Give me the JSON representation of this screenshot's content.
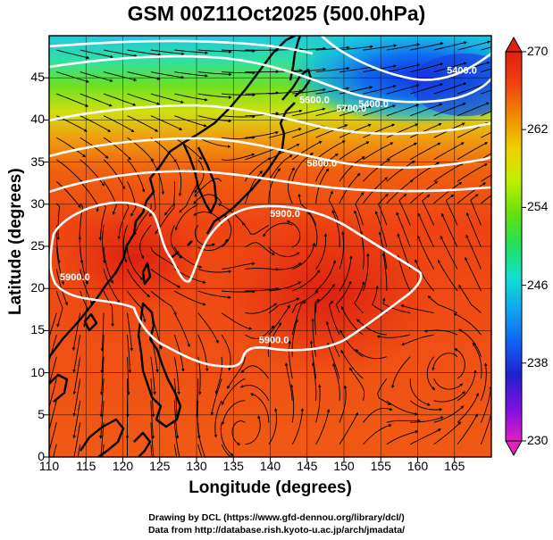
{
  "title": "GSM 00Z11Oct2025 (500.0hPa)",
  "x_axis": {
    "label": "Longitude (degrees)",
    "ticks": [
      "110",
      "115",
      "120",
      "125",
      "130",
      "135",
      "140",
      "145",
      "150",
      "155",
      "160",
      "165"
    ],
    "range": [
      110,
      170
    ]
  },
  "y_axis": {
    "label": "Latitude  (degrees)",
    "ticks": [
      "0",
      "5",
      "10",
      "15",
      "20",
      "25",
      "30",
      "35",
      "40",
      "45"
    ],
    "range": [
      0,
      50
    ]
  },
  "colorbar": {
    "ticks": [
      "230",
      "238",
      "246",
      "254",
      "262",
      "270"
    ],
    "range": [
      230,
      270
    ],
    "colors": [
      "#e020c0",
      "#8010e0",
      "#2020d0",
      "#1060f0",
      "#10a0f0",
      "#10e0d0",
      "#20e060",
      "#60e010",
      "#c0f000",
      "#f0d000",
      "#f09000",
      "#f04010",
      "#e02010"
    ]
  },
  "contours": {
    "labels": [
      {
        "text": "5400.0",
        "lon": 154,
        "lat": 41.5
      },
      {
        "text": "5400.0",
        "lon": 166,
        "lat": 45.5
      },
      {
        "text": "5600.0",
        "lon": 146,
        "lat": 42
      },
      {
        "text": "5700.0",
        "lon": 151,
        "lat": 41
      },
      {
        "text": "5800.0",
        "lon": 147,
        "lat": 34.5
      },
      {
        "text": "5900.0",
        "lon": 142,
        "lat": 28.5
      },
      {
        "text": "5900.0",
        "lon": 113.5,
        "lat": 21
      },
      {
        "text": "5900.0",
        "lon": 140.5,
        "lat": 13.5
      }
    ]
  },
  "credits": {
    "line1": "Drawing by DCL (https://www.gfd-dennou.org/library/dcl/)",
    "line2": "Data from http://database.rish.kyoto-u.ac.jp/arch/jmadata/"
  }
}
